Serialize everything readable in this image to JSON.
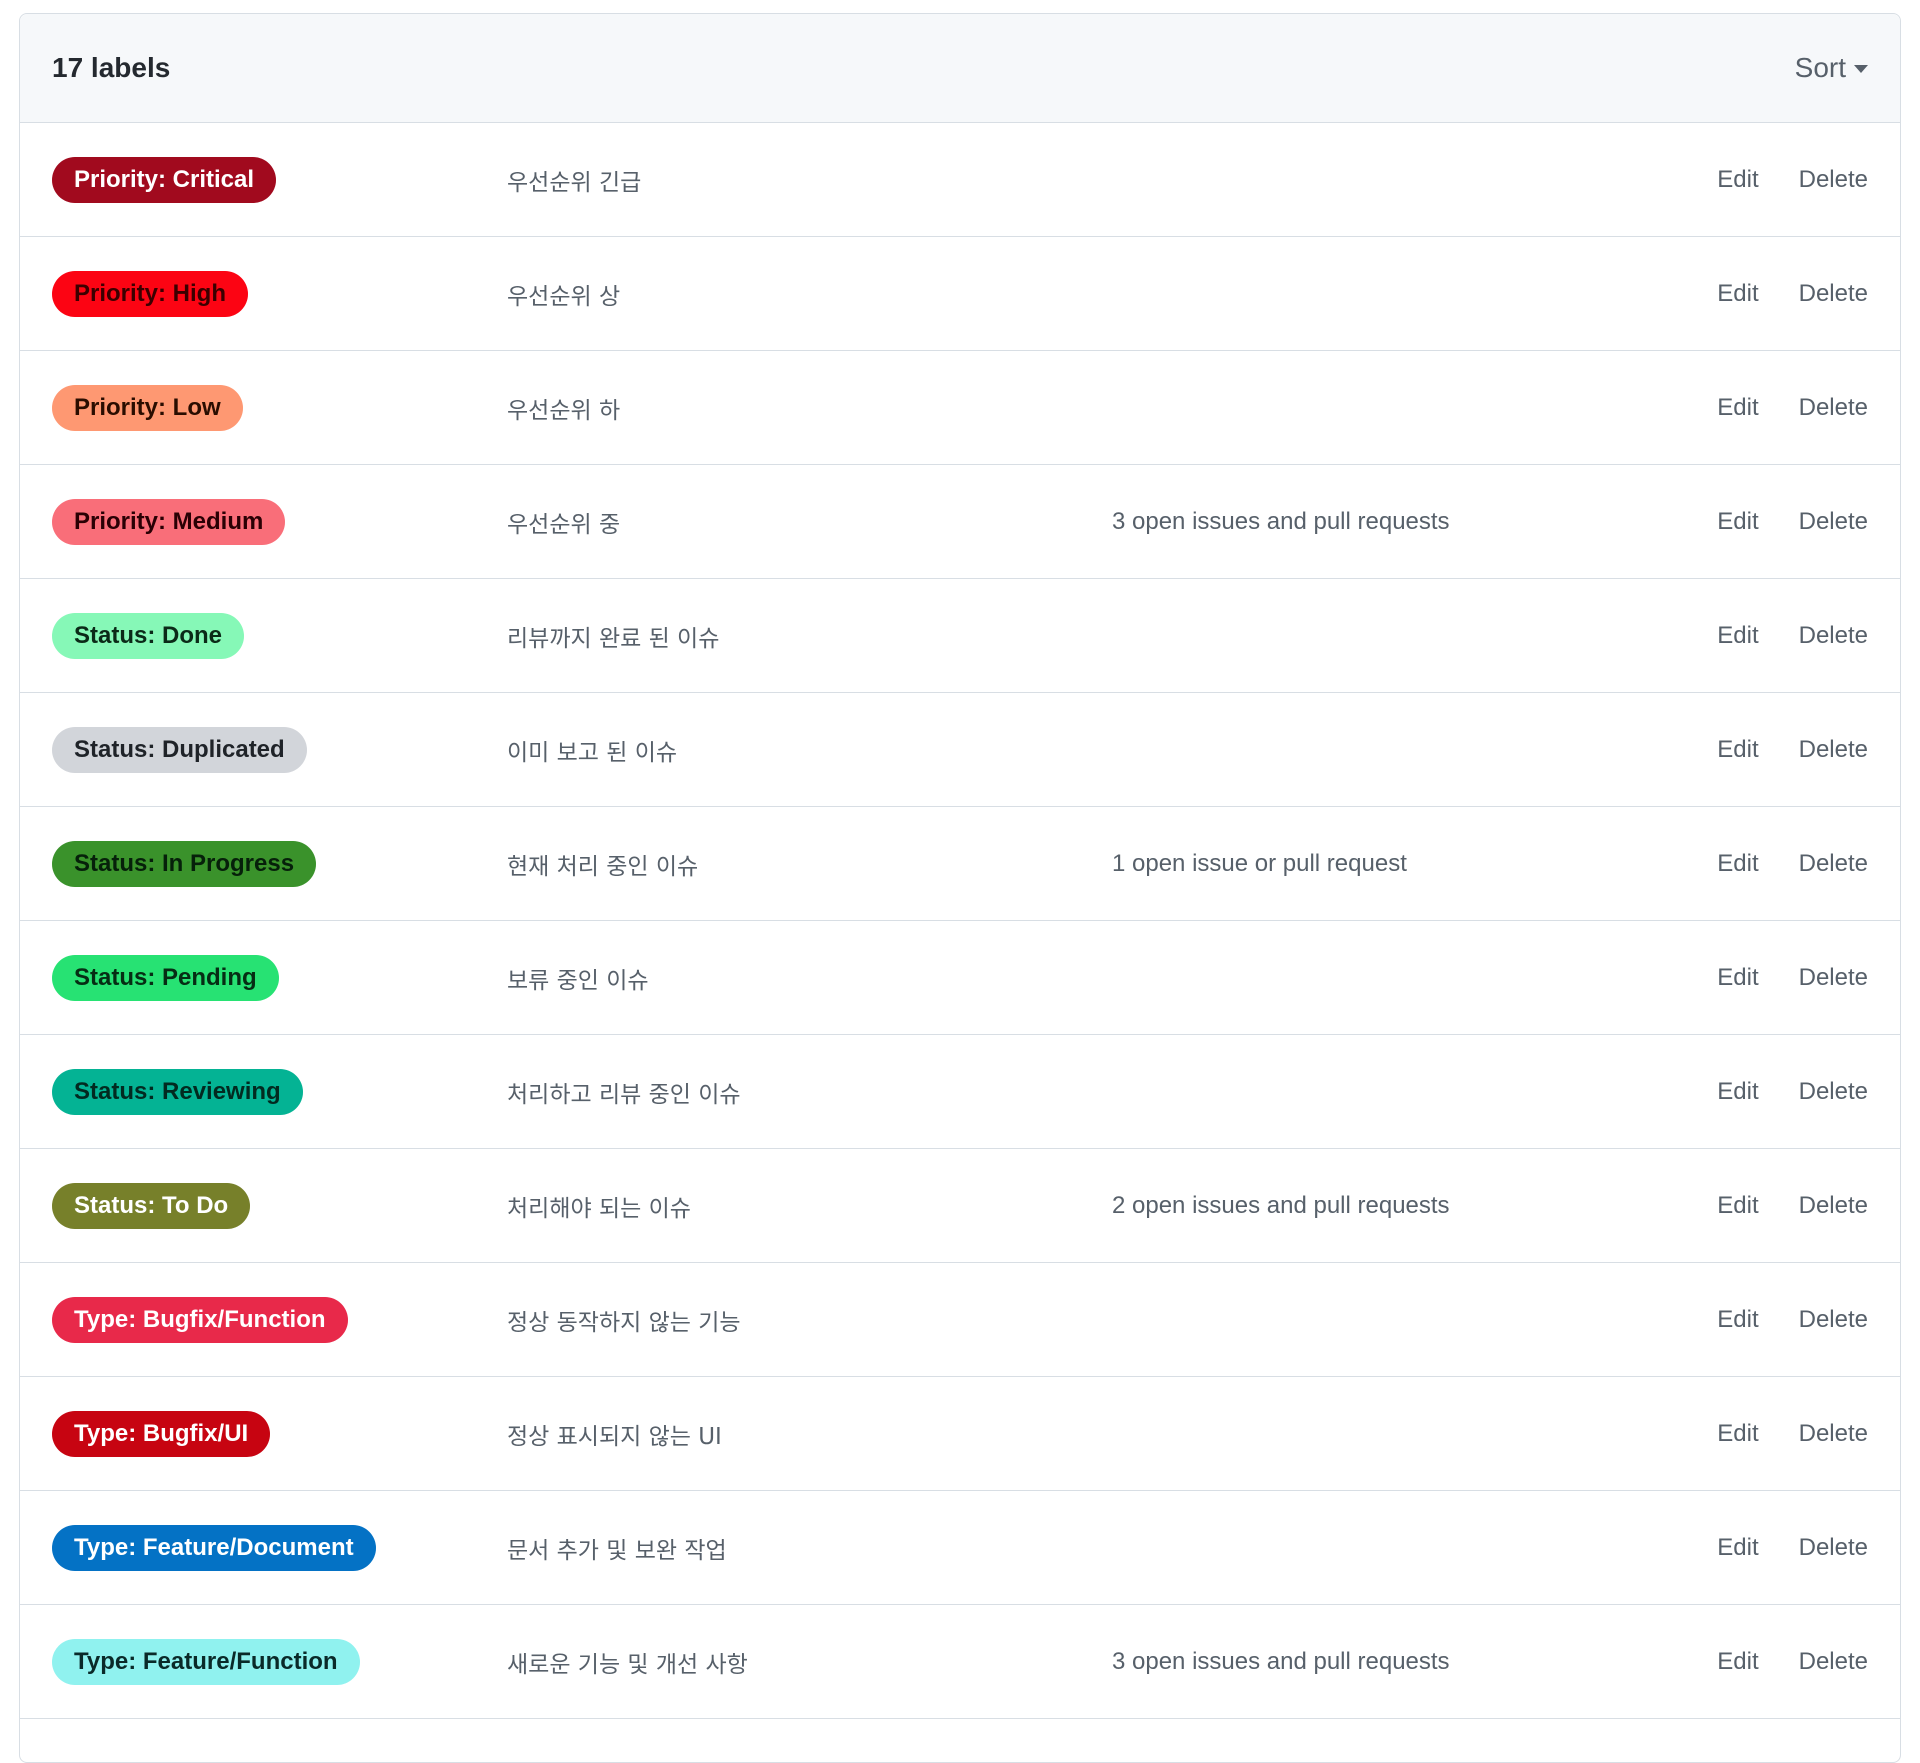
{
  "header": {
    "count": "17 labels",
    "sort_label": "Sort"
  },
  "actions": {
    "edit": "Edit",
    "delete": "Delete"
  },
  "labels": [
    {
      "name": "Priority: Critical",
      "description": "우선순위 긴급",
      "issues": "",
      "bg": "#a10a1e",
      "fg": "#ffffff"
    },
    {
      "name": "Priority: High",
      "description": "우선순위 상",
      "issues": "",
      "bg": "#fc0413",
      "fg": "#3b0000"
    },
    {
      "name": "Priority: Low",
      "description": "우선순위 하",
      "issues": "",
      "bg": "#fe9872",
      "fg": "#2a0d00"
    },
    {
      "name": "Priority: Medium",
      "description": "우선순위 중",
      "issues": "3 open issues and pull requests",
      "bg": "#f96e79",
      "fg": "#2a0004"
    },
    {
      "name": "Status: Done",
      "description": "리뷰까지 완료 된 이슈",
      "issues": "",
      "bg": "#86f8b7",
      "fg": "#0b2a18"
    },
    {
      "name": "Status: Duplicated",
      "description": "이미 보고 된 이슈",
      "issues": "",
      "bg": "#d2d5da",
      "fg": "#1f2328"
    },
    {
      "name": "Status: In Progress",
      "description": "현재 처리 중인 이슈",
      "issues": "1 open issue or pull request",
      "bg": "#3a922b",
      "fg": "#06200a"
    },
    {
      "name": "Status: Pending",
      "description": "보류 중인 이슈",
      "issues": "",
      "bg": "#27e273",
      "fg": "#062d14"
    },
    {
      "name": "Status: Reviewing",
      "description": "처리하고 리뷰 중인 이슈",
      "issues": "",
      "bg": "#04b394",
      "fg": "#022a20"
    },
    {
      "name": "Status: To Do",
      "description": "처리해야 되는 이슈",
      "issues": "2 open issues and pull requests",
      "bg": "#77802a",
      "fg": "#ffffff"
    },
    {
      "name": "Type: Bugfix/Function",
      "description": "정상 동작하지 않는 기능",
      "issues": "",
      "bg": "#e8294a",
      "fg": "#ffffff"
    },
    {
      "name": "Type: Bugfix/UI",
      "description": "정상 표시되지 않는 UI",
      "issues": "",
      "bg": "#c70411",
      "fg": "#ffffff"
    },
    {
      "name": "Type: Feature/Document",
      "description": "문서 추가 및 보완 작업",
      "issues": "",
      "bg": "#0472c5",
      "fg": "#ffffff"
    },
    {
      "name": "Type: Feature/Function",
      "description": "새로운 기능 및 개선 사항",
      "issues": "3 open issues and pull requests",
      "bg": "#90f2ef",
      "fg": "#0a2a29"
    }
  ]
}
